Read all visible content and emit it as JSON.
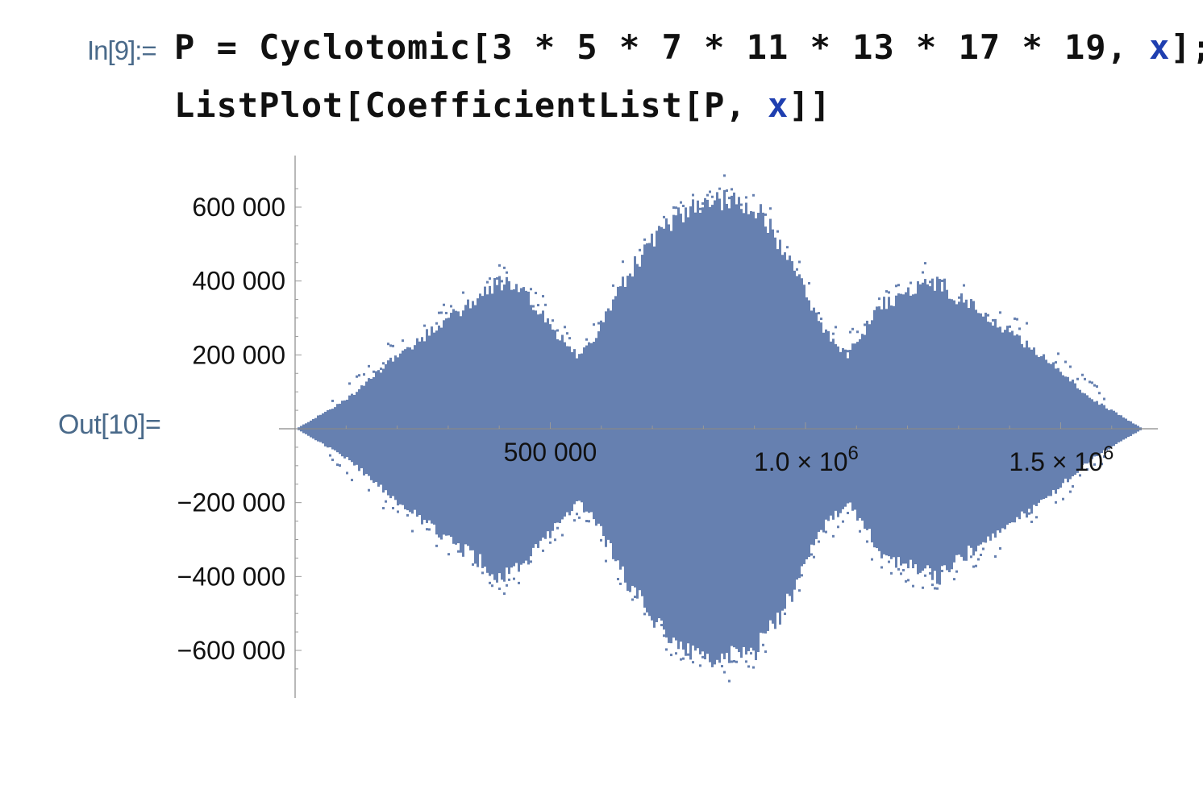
{
  "notebook": {
    "input_label": "In[9]:=",
    "output_label": "Out[10]=",
    "code": {
      "line1": {
        "a": "P = Cyclotomic[3 * 5 * 7 * 11 * 13 * 17 * 19, ",
        "sym": "x",
        "b": "];"
      },
      "line2": {
        "a": "ListPlot[CoefficientList[P, ",
        "sym": "x",
        "b": "]]"
      }
    },
    "symbol_color": "#1f3fb0"
  },
  "chart_data": {
    "type": "scatter",
    "title": "",
    "xlabel": "",
    "ylabel": "",
    "marker_color": "#6680b0",
    "xlim": [
      0,
      1658880
    ],
    "ylim": [
      -720000,
      720000
    ],
    "x_ticks": [
      {
        "value": 500000,
        "label": "500 000",
        "base": "",
        "exp": ""
      },
      {
        "value": 1000000,
        "label": "",
        "base": "1.0 × 10",
        "exp": "6"
      },
      {
        "value": 1500000,
        "label": "",
        "base": "1.5 × 10",
        "exp": "6"
      }
    ],
    "y_ticks": [
      {
        "value": 600000,
        "label": "600 000"
      },
      {
        "value": 400000,
        "label": "400 000"
      },
      {
        "value": 200000,
        "label": "200 000"
      },
      {
        "value": -200000,
        "label": "−200 000"
      },
      {
        "value": -400000,
        "label": "−400 000"
      },
      {
        "value": -600000,
        "label": "−600 000"
      }
    ],
    "envelope": {
      "description_x": [
        0,
        100000,
        200000,
        300000,
        370000,
        400000,
        450000,
        510000,
        550000,
        580000,
        650000,
        730000,
        800000,
        830000,
        900000,
        960000,
        1030000,
        1080000,
        1110000,
        1150000,
        1200000,
        1260000,
        1290000,
        1360000,
        1460000,
        1560000,
        1658880
      ],
      "upper": [
        0,
        80000,
        200000,
        300000,
        370000,
        400000,
        360000,
        260000,
        200000,
        230000,
        420000,
        560000,
        620000,
        620000,
        600000,
        480000,
        270000,
        200000,
        260000,
        340000,
        370000,
        400000,
        360000,
        300000,
        200000,
        80000,
        0
      ],
      "lower": [
        0,
        -80000,
        -200000,
        -300000,
        -370000,
        -400000,
        -360000,
        -260000,
        -200000,
        -230000,
        -420000,
        -560000,
        -620000,
        -620000,
        -600000,
        -480000,
        -270000,
        -200000,
        -260000,
        -340000,
        -370000,
        -400000,
        -360000,
        -300000,
        -200000,
        -80000,
        0
      ]
    }
  }
}
